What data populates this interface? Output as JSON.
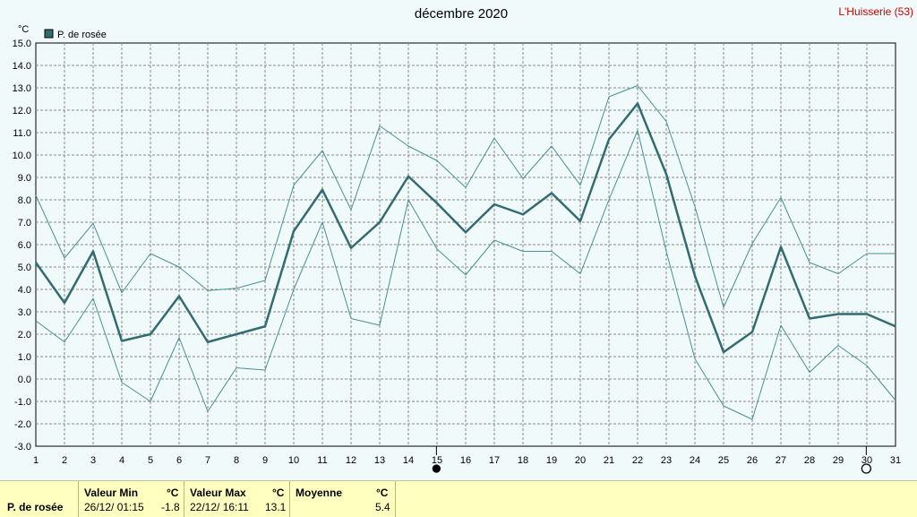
{
  "header": {
    "title": "décembre 2020",
    "station": "L'Huisserie (53)",
    "unit": "°C"
  },
  "colors": {
    "main": "#336b70",
    "envelope": "#4a9090",
    "grid": "#888888",
    "plot_bg": "#f0fafa"
  },
  "chart_data": {
    "type": "line",
    "title": "décembre 2020",
    "ylabel": "°C",
    "ylim": [
      -3.0,
      15.0
    ],
    "yticks": [
      "15.0",
      "14.0",
      "13.0",
      "12.0",
      "11.0",
      "10.0",
      "9.0",
      "8.0",
      "7.0",
      "6.0",
      "5.0",
      "4.0",
      "3.0",
      "2.0",
      "1.0",
      "0.0",
      "-1.0",
      "-2.0",
      "-3.0"
    ],
    "xlim": [
      1,
      31
    ],
    "x": [
      1,
      2,
      3,
      4,
      5,
      6,
      7,
      8,
      9,
      10,
      11,
      12,
      13,
      14,
      15,
      16,
      17,
      18,
      19,
      20,
      21,
      22,
      23,
      24,
      25,
      26,
      27,
      28,
      29,
      30,
      31
    ],
    "legend_position": "top-left",
    "grid": true,
    "markers": [
      {
        "day": 14.98,
        "type": "filled-circle"
      },
      {
        "day": 29.98,
        "type": "open-circle"
      }
    ],
    "series": [
      {
        "name": "P. de rosée",
        "role": "mean",
        "values": [
          5.2,
          3.4,
          5.7,
          1.7,
          2.0,
          3.7,
          1.65,
          2.0,
          2.35,
          6.6,
          8.45,
          5.85,
          7.0,
          9.05,
          7.85,
          6.55,
          7.8,
          7.35,
          8.3,
          7.05,
          10.7,
          12.3,
          9.15,
          4.6,
          1.2,
          2.1,
          5.9,
          2.7,
          2.9,
          2.9,
          2.35
        ]
      },
      {
        "role": "max",
        "values": [
          8.2,
          5.4,
          6.95,
          3.85,
          5.6,
          5.0,
          3.95,
          4.05,
          4.4,
          8.65,
          10.2,
          7.55,
          11.3,
          10.4,
          9.75,
          8.55,
          10.75,
          8.95,
          10.4,
          8.65,
          12.6,
          13.1,
          11.5,
          7.7,
          3.2,
          6.05,
          8.1,
          5.2,
          4.7,
          5.6,
          5.6
        ]
      },
      {
        "role": "min",
        "values": [
          2.6,
          1.65,
          3.6,
          -0.15,
          -1.0,
          1.85,
          -1.45,
          0.5,
          0.4,
          4.0,
          7.0,
          2.7,
          2.4,
          8.0,
          5.8,
          4.65,
          6.2,
          5.7,
          5.7,
          4.7,
          8.0,
          11.1,
          5.7,
          0.9,
          -1.2,
          -1.8,
          2.4,
          0.3,
          1.5,
          0.6,
          -0.95
        ]
      }
    ]
  },
  "footer": {
    "series_label": "P. de rosée",
    "min": {
      "label": "Valeur Min",
      "unit": "°C",
      "datetime": "26/12/  01:15",
      "value": "-1.8"
    },
    "max": {
      "label": "Valeur Max",
      "unit": "°C",
      "datetime": "22/12/  16:11",
      "value": "13.1"
    },
    "mean": {
      "label": "Moyenne",
      "unit": "°C",
      "value": "5.4"
    }
  }
}
